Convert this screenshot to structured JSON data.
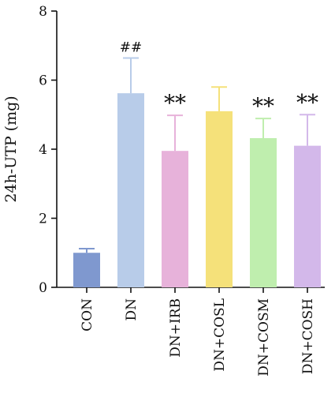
{
  "chart_data": {
    "type": "bar",
    "title": "",
    "xlabel": "",
    "ylabel": "24h-UTP (mg)",
    "ylim": [
      0,
      8
    ],
    "yticks": [
      "0",
      "2",
      "4",
      "6",
      "8"
    ],
    "grid": false,
    "legend": "none",
    "categories": [
      "CON",
      "DN",
      "DN+IRB",
      "DN+COSL",
      "DN+COSM",
      "DN+COSH"
    ],
    "values": [
      1.0,
      5.62,
      3.95,
      5.1,
      4.32,
      4.1
    ],
    "errors": [
      0.12,
      1.02,
      1.03,
      0.7,
      0.57,
      0.9
    ],
    "colors": [
      "#7f98cf",
      "#b8cce9",
      "#e7b2da",
      "#f5e17a",
      "#bfeeae",
      "#d3b8ea"
    ],
    "annotations": [
      "",
      "##",
      "**",
      "",
      "**",
      "**"
    ]
  }
}
